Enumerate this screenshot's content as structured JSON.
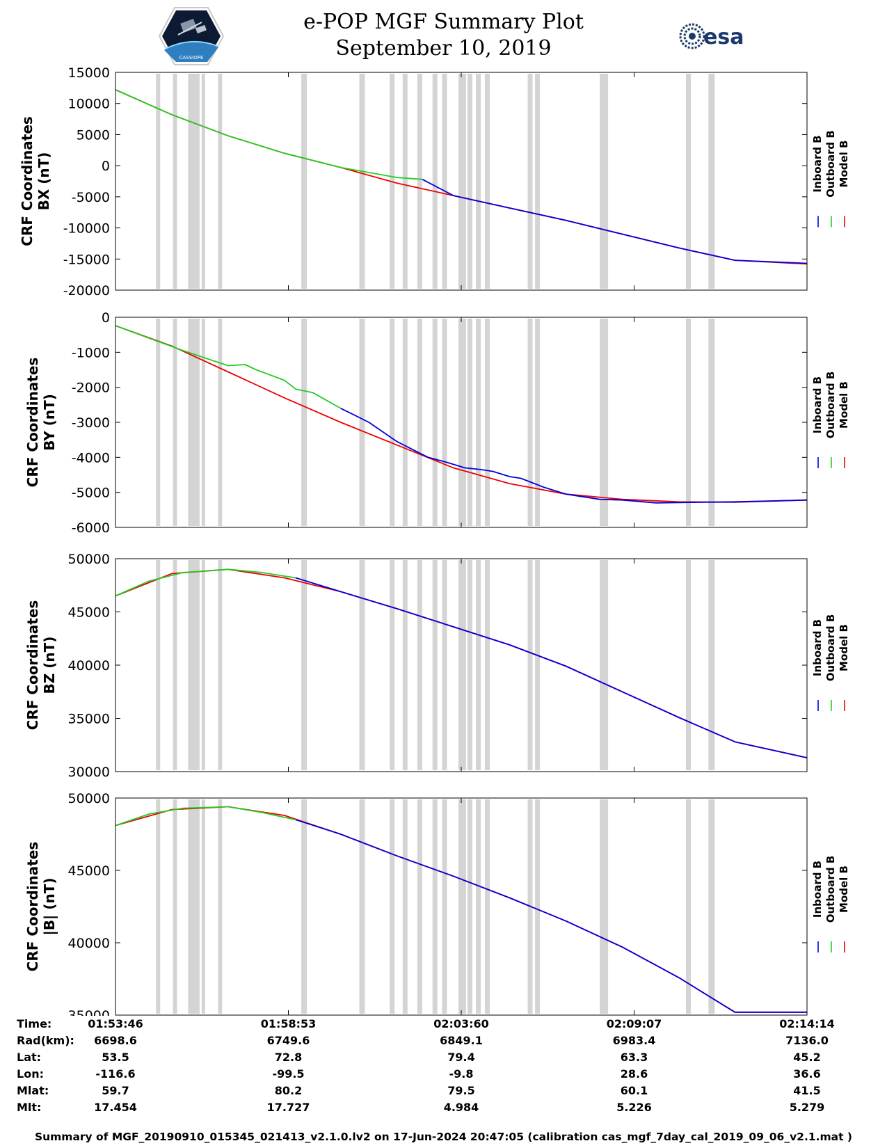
{
  "title": "e-POP MGF Summary Plot",
  "subtitle": "September 10, 2019",
  "logos": {
    "cassiope": "CASSIOPE",
    "esa": "esa"
  },
  "legend": [
    {
      "label": "Inboard B",
      "color": "#0000dd"
    },
    {
      "label": "Outboard B",
      "color": "#22cc22"
    },
    {
      "label": "Model B",
      "color": "#ee0000"
    }
  ],
  "colors": {
    "gap": "#d4d4d4",
    "axis": "#000000"
  },
  "chart_data": [
    {
      "type": "line",
      "id": "bx",
      "ylabel_line1": "CRF Coordinates",
      "ylabel_line2": "BX (nT)",
      "ylim": [
        -20000,
        15000
      ],
      "yticks": [
        15000,
        10000,
        5000,
        0,
        -5000,
        -10000,
        -15000,
        -20000
      ],
      "ytick_labels": [
        "15000",
        "10000",
        "5000",
        "0",
        "-5000",
        "-10000",
        "-15000",
        "-20000"
      ],
      "xlim": [
        0,
        1228
      ],
      "series": [
        {
          "name": "Model B",
          "x": [
            0,
            100,
            200,
            300,
            400,
            500,
            600,
            700,
            800,
            900,
            1000,
            1100,
            1228
          ],
          "values": [
            12200,
            8200,
            4800,
            2000,
            -300,
            -2800,
            -4800,
            -6800,
            -8800,
            -11000,
            -13200,
            -15200,
            -15800
          ]
        },
        {
          "name": "Outboard B",
          "x": [
            0,
            100,
            200,
            300,
            400,
            500,
            545
          ],
          "values": [
            12200,
            8200,
            4800,
            2000,
            -300,
            -1900,
            -2200
          ]
        },
        {
          "name": "Inboard B",
          "x": [
            545,
            600,
            700,
            800,
            900,
            1000,
            1100,
            1228
          ],
          "values": [
            -2200,
            -4800,
            -6800,
            -8800,
            -11000,
            -13200,
            -15200,
            -15700
          ]
        }
      ]
    },
    {
      "type": "line",
      "id": "by",
      "ylabel_line1": "CRF Coordinates",
      "ylabel_line2": "BY (nT)",
      "ylim": [
        -6000,
        0
      ],
      "yticks": [
        0,
        -1000,
        -2000,
        -3000,
        -4000,
        -5000,
        -6000
      ],
      "ytick_labels": [
        "0",
        "-1000",
        "-2000",
        "-3000",
        "-4000",
        "-5000",
        "-6000"
      ],
      "xlim": [
        0,
        1228
      ],
      "series": [
        {
          "name": "Model B",
          "x": [
            0,
            100,
            200,
            300,
            400,
            500,
            600,
            700,
            800,
            900,
            1000,
            1100,
            1228
          ],
          "values": [
            -240,
            -820,
            -1560,
            -2300,
            -3000,
            -3650,
            -4300,
            -4750,
            -5050,
            -5200,
            -5270,
            -5280,
            -5220
          ]
        },
        {
          "name": "Outboard B",
          "x": [
            0,
            60,
            120,
            175,
            200,
            230,
            250,
            300,
            320,
            350,
            400
          ],
          "values": [
            -240,
            -600,
            -950,
            -1250,
            -1380,
            -1350,
            -1500,
            -1800,
            -2050,
            -2150,
            -2600
          ]
        },
        {
          "name": "Inboard B",
          "x": [
            400,
            450,
            500,
            555,
            590,
            620,
            650,
            670,
            700,
            720,
            760,
            800,
            860,
            900,
            960,
            1000,
            1100,
            1228
          ],
          "values": [
            -2600,
            -3000,
            -3550,
            -4000,
            -4150,
            -4300,
            -4350,
            -4400,
            -4550,
            -4600,
            -4850,
            -5050,
            -5200,
            -5220,
            -5300,
            -5290,
            -5270,
            -5220
          ]
        }
      ]
    },
    {
      "type": "line",
      "id": "bz",
      "ylabel_line1": "CRF Coordinates",
      "ylabel_line2": "BZ (nT)",
      "ylim": [
        30000,
        50000
      ],
      "yticks": [
        50000,
        45000,
        40000,
        35000,
        30000
      ],
      "ytick_labels": [
        "50000",
        "45000",
        "40000",
        "35000",
        "30000"
      ],
      "xlim": [
        0,
        1228
      ],
      "series": [
        {
          "name": "Model B",
          "x": [
            0,
            100,
            200,
            300,
            400,
            500,
            600,
            700,
            800,
            900,
            1000,
            1100,
            1228
          ],
          "values": [
            46500,
            48600,
            49000,
            48200,
            46900,
            45300,
            43600,
            41900,
            39900,
            37500,
            35100,
            32800,
            31300
          ]
        },
        {
          "name": "Outboard B",
          "x": [
            0,
            60,
            120,
            200,
            260,
            320
          ],
          "values": [
            46500,
            47900,
            48700,
            49000,
            48700,
            48200
          ]
        },
        {
          "name": "Inboard B",
          "x": [
            320,
            400,
            500,
            600,
            700,
            800,
            900,
            1000,
            1100,
            1228
          ],
          "values": [
            48200,
            46900,
            45300,
            43600,
            41900,
            39900,
            37500,
            35100,
            32800,
            31300
          ]
        }
      ]
    },
    {
      "type": "line",
      "id": "bt",
      "ylabel_line1": "CRF Coordinates",
      "ylabel_line2": "|B| (nT)",
      "ylim": [
        35000,
        50000
      ],
      "yticks": [
        50000,
        45000,
        40000,
        35000
      ],
      "ytick_labels": [
        "50000",
        "45000",
        "40000",
        "35000"
      ],
      "xlim": [
        0,
        1228
      ],
      "series": [
        {
          "name": "Model B",
          "x": [
            0,
            100,
            200,
            300,
            400,
            500,
            600,
            700,
            800,
            900,
            1000,
            1100,
            1228
          ],
          "values": [
            48100,
            49200,
            49400,
            48800,
            47500,
            46000,
            44600,
            43100,
            41500,
            39700,
            37600,
            35200,
            35200
          ]
        },
        {
          "name": "Outboard B",
          "x": [
            0,
            60,
            120,
            200,
            260,
            320
          ],
          "values": [
            48100,
            48900,
            49300,
            49400,
            49000,
            48500
          ]
        },
        {
          "name": "Inboard B",
          "x": [
            320,
            400,
            500,
            600,
            700,
            800,
            900,
            1000,
            1100,
            1228
          ],
          "values": [
            48500,
            47500,
            46000,
            44600,
            43100,
            41500,
            39700,
            37600,
            35200,
            35200
          ]
        }
      ]
    }
  ],
  "gaps": [
    {
      "x": 72,
      "w": 6
    },
    {
      "x": 102,
      "w": 6
    },
    {
      "x": 129,
      "w": 11
    },
    {
      "x": 142,
      "w": 6
    },
    {
      "x": 153,
      "w": 5
    },
    {
      "x": 182,
      "w": 6
    },
    {
      "x": 330,
      "w": 8
    },
    {
      "x": 433,
      "w": 8
    },
    {
      "x": 487,
      "w": 7
    },
    {
      "x": 510,
      "w": 7
    },
    {
      "x": 536,
      "w": 7
    },
    {
      "x": 563,
      "w": 7
    },
    {
      "x": 580,
      "w": 7
    },
    {
      "x": 609,
      "w": 11
    },
    {
      "x": 625,
      "w": 7
    },
    {
      "x": 640,
      "w": 7
    },
    {
      "x": 656,
      "w": 7
    },
    {
      "x": 732,
      "w": 7
    },
    {
      "x": 745,
      "w": 7
    },
    {
      "x": 860,
      "w": 12
    },
    {
      "x": 1013,
      "w": 7
    },
    {
      "x": 1053,
      "w": 9
    }
  ],
  "xticks": [
    0,
    307,
    614,
    921,
    1228
  ],
  "info_table": {
    "labels": [
      "Time:",
      "Rad(km):",
      "Lat:",
      "Lon:",
      "Mlat:",
      "Mlt:"
    ],
    "columns": [
      [
        "01:53:46",
        "6698.6",
        "53.5",
        "-116.6",
        "59.7",
        "17.454"
      ],
      [
        "01:58:53",
        "6749.6",
        "72.8",
        "-99.5",
        "80.2",
        "17.727"
      ],
      [
        "02:03:60",
        "6849.1",
        "79.4",
        "-9.8",
        "79.5",
        "4.984"
      ],
      [
        "02:09:07",
        "6983.4",
        "63.3",
        "28.6",
        "60.1",
        "5.226"
      ],
      [
        "02:14:14",
        "7136.0",
        "45.2",
        "36.6",
        "41.5",
        "5.279"
      ]
    ]
  },
  "footer": "Summary of MGF_20190910_015345_021413_v2.1.0.lv2 on 17-Jun-2024 20:47:05 (calibration cas_mgf_7day_cal_2019_09_06_v2.1.mat )"
}
